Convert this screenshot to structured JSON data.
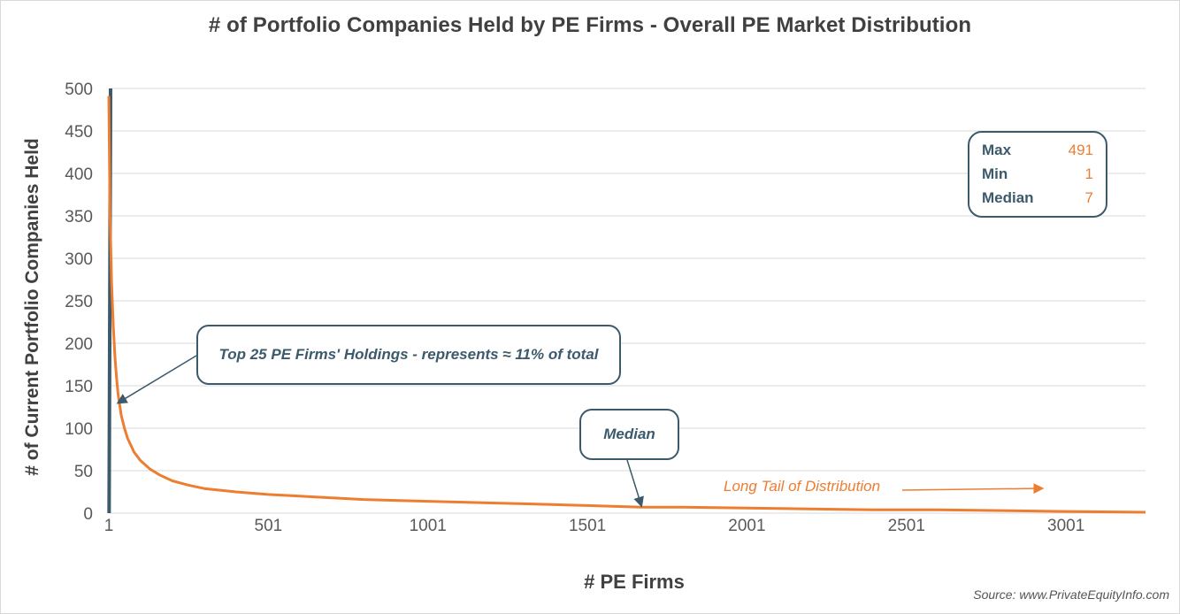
{
  "chart_data": {
    "type": "line",
    "title": "# of Portfolio Companies Held by PE Firms - Overall PE Market Distribution",
    "xlabel": "# PE Firms",
    "ylabel": "# of Current Portfolio Companies Held",
    "xlim": [
      1,
      3250
    ],
    "ylim": [
      0,
      500
    ],
    "yticks": [
      0,
      50,
      100,
      150,
      200,
      250,
      300,
      350,
      400,
      450,
      500
    ],
    "xticks": [
      1,
      501,
      1001,
      1501,
      2001,
      2501,
      3001
    ],
    "grid": "horizontal",
    "series": [
      {
        "color": "#ed7d31",
        "x": [
          1,
          5,
          10,
          15,
          20,
          25,
          30,
          40,
          50,
          60,
          80,
          100,
          130,
          160,
          200,
          250,
          300,
          400,
          500,
          600,
          700,
          800,
          900,
          1000,
          1100,
          1200,
          1300,
          1400,
          1500,
          1670,
          1800,
          2000,
          2200,
          2400,
          2600,
          2800,
          3000,
          3250
        ],
        "y": [
          491,
          350,
          270,
          220,
          185,
          160,
          140,
          115,
          100,
          88,
          72,
          62,
          52,
          45,
          38,
          33,
          29,
          25,
          22,
          20,
          18,
          16,
          15,
          14,
          13,
          12,
          11,
          10,
          9,
          7,
          7,
          6,
          5,
          4,
          4,
          3,
          2,
          1
        ]
      }
    ],
    "highlight_bar": {
      "x": 13,
      "color": "#3b5a6b"
    },
    "annotations": {
      "top25": "Top 25 PE Firms' Holdings - represents ≈ 11% of total",
      "median": "Median",
      "tail": "Long Tail of Distribution"
    }
  },
  "stats_box": {
    "rows": [
      {
        "label": "Max",
        "value": "491"
      },
      {
        "label": "Min",
        "value": "1"
      },
      {
        "label": "Median",
        "value": "7"
      }
    ]
  },
  "source": "Source: www.PrivateEquityInfo.com",
  "colors": {
    "line": "#ed7d31",
    "accent": "#3b5a6b",
    "grid": "#d9d9d9",
    "text": "#404040",
    "tick": "#595959"
  }
}
